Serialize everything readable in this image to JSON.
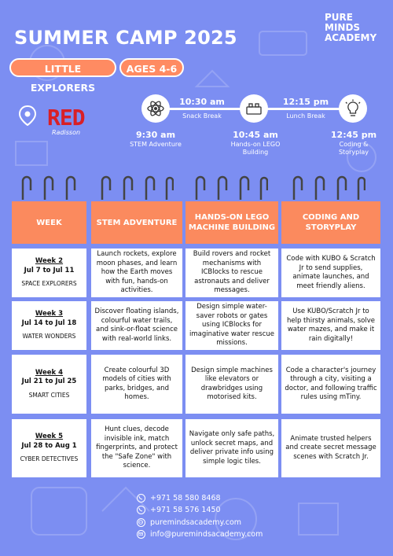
{
  "header": {
    "title": "SUMMER CAMP 2025",
    "logo_line1": "PURE",
    "logo_line2": "MINDS ACADEMY"
  },
  "tags": {
    "group": "LITTLE EXPLORERS",
    "ages": "AGES 4-6"
  },
  "venue": {
    "brand": "RED",
    "sub": "Radisson",
    "icon": "location-pin-icon"
  },
  "timeline": [
    {
      "time": "9:30 am",
      "label": "STEM Adventure",
      "icon": "atom-icon"
    },
    {
      "time": "10:30 am",
      "label": "Snack Break"
    },
    {
      "time": "10:45 am",
      "label": "Hands-on LEGO Building",
      "icon": "lego-brick-icon"
    },
    {
      "time": "12:15 pm",
      "label": "Lunch Break"
    },
    {
      "time": "12:45 pm",
      "label": "Coding & Storyplay",
      "icon": "lightbulb-icon"
    }
  ],
  "table": {
    "columns": [
      "WEEK",
      "STEM ADVENTURE",
      "HANDS-ON LEGO MACHINE BUILDING",
      "CODING AND STORYPLAY"
    ],
    "rows": [
      {
        "week": "Week 2",
        "dates": "Jul 7 to Jul 11",
        "theme": "SPACE EXPLORERS",
        "stem": "Launch rockets, explore moon phases, and learn how the Earth moves with fun, hands-on activities.",
        "lego": "Build rovers and rocket mechanisms with ICBlocks to rescue astronauts and deliver messages.",
        "coding": "Code with KUBO & Scratch Jr to send supplies, animate launches, and meet friendly aliens."
      },
      {
        "week": "Week 3",
        "dates": "Jul 14 to Jul 18",
        "theme": "WATER WONDERS",
        "stem": "Discover floating islands, colourful water trails, and sink-or-float science with real-world links.",
        "lego": "Design simple water-saver robots or gates using ICBlocks for imaginative water rescue missions.",
        "coding": "Use KUBO/Scratch Jr to help thirsty animals, solve water mazes, and make it rain digitally!"
      },
      {
        "week": "Week 4",
        "dates": "Jul 21 to Jul 25",
        "theme": "SMART CITIES",
        "stem": "Create colourful 3D models of cities with parks, bridges, and homes.",
        "lego": "Design simple machines like elevators or drawbridges using motorised kits.",
        "coding": "Code a character's journey through a city, visiting a doctor, and following traffic rules using mTiny."
      },
      {
        "week": "Week 5",
        "dates": "Jul 28 to Aug 1",
        "theme": "CYBER DETECTIVES",
        "stem": "Hunt clues, decode invisible ink, match fingerprints, and protect the \"Safe Zone\" with science.",
        "lego": "Navigate only safe paths, unlock secret maps, and deliver private info using simple logic tiles.",
        "coding": "Animate trusted helpers and create secret message scenes with Scratch Jr."
      }
    ]
  },
  "contact": {
    "phone1": "+971 58 580 8468",
    "phone2": "+971 58 576 1450",
    "website": "puremindsacademy.com",
    "email": "info@puremindsacademy.com"
  },
  "colors": {
    "background": "#7c8ef2",
    "accent": "#fb8a5e",
    "brand_red": "#d91f26"
  }
}
